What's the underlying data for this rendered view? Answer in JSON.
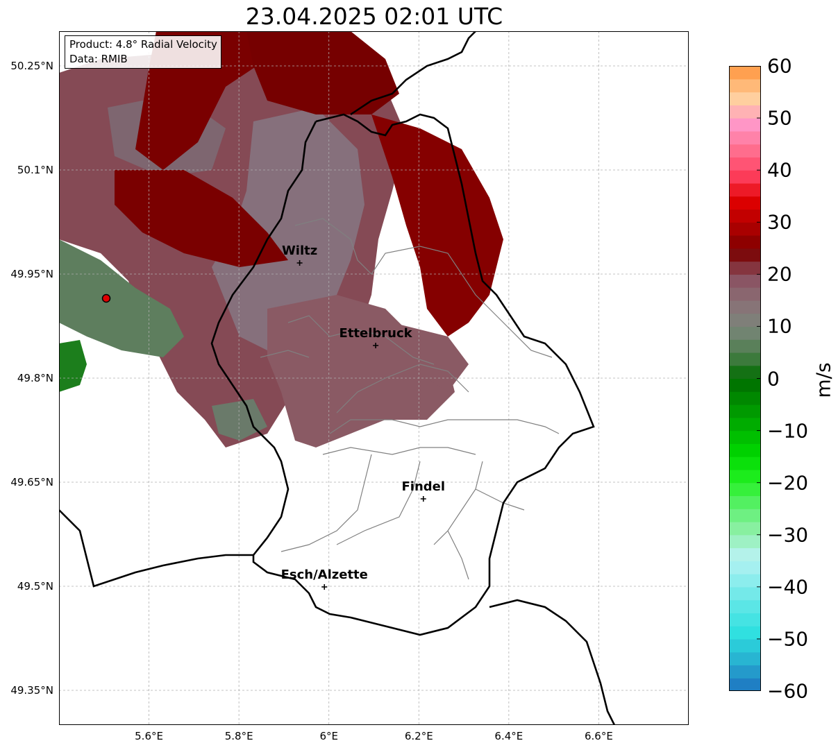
{
  "title": "23.04.2025 02:01 UTC",
  "info": {
    "product_line": "Product: 4.8° Radial Velocity",
    "data_line": "Data: RMIB"
  },
  "map": {
    "lon_range": [
      5.4,
      6.8
    ],
    "lat_range": [
      49.3,
      50.3
    ],
    "x_ticks": [
      {
        "value": 5.6,
        "label": "5.6°E"
      },
      {
        "value": 5.8,
        "label": "5.8°E"
      },
      {
        "value": 6.0,
        "label": "6°E"
      },
      {
        "value": 6.2,
        "label": "6.2°E"
      },
      {
        "value": 6.4,
        "label": "6.4°E"
      },
      {
        "value": 6.6,
        "label": "6.6°E"
      }
    ],
    "y_ticks": [
      {
        "value": 50.25,
        "label": "50.25°N"
      },
      {
        "value": 50.1,
        "label": "50.1°N"
      },
      {
        "value": 49.95,
        "label": "49.95°N"
      },
      {
        "value": 49.8,
        "label": "49.8°N"
      },
      {
        "value": 49.65,
        "label": "49.65°N"
      },
      {
        "value": 49.5,
        "label": "49.5°N"
      },
      {
        "value": 49.35,
        "label": "49.35°N"
      }
    ],
    "grid": true,
    "radar_site": {
      "lon": 5.505,
      "lat": 49.915,
      "color": "#e00000"
    },
    "cities": [
      {
        "name": "Wiltz",
        "lon": 5.935,
        "lat": 49.966
      },
      {
        "name": "Ettelbruck",
        "lon": 6.104,
        "lat": 49.847
      },
      {
        "name": "Findel",
        "lon": 6.21,
        "lat": 49.626
      },
      {
        "name": "Esch/Alzette",
        "lon": 5.99,
        "lat": 49.499
      }
    ]
  },
  "colorbar": {
    "unit": "m/s",
    "range": [
      -60,
      60
    ],
    "ticks": [
      {
        "value": 60,
        "label": "60"
      },
      {
        "value": 50,
        "label": "50"
      },
      {
        "value": 40,
        "label": "40"
      },
      {
        "value": 30,
        "label": "30"
      },
      {
        "value": 20,
        "label": "20"
      },
      {
        "value": 10,
        "label": "10"
      },
      {
        "value": 0,
        "label": "0"
      },
      {
        "value": -10,
        "label": "−10"
      },
      {
        "value": -20,
        "label": "−20"
      },
      {
        "value": -30,
        "label": "−30"
      },
      {
        "value": -40,
        "label": "−40"
      },
      {
        "value": -50,
        "label": "−50"
      },
      {
        "value": -60,
        "label": "−60"
      }
    ],
    "colors": [
      "#1f7fc4",
      "#28b4d2",
      "#2ee0e0",
      "#58e6e6",
      "#88ecec",
      "#b8f2f2",
      "#8ef0a8",
      "#5cf06c",
      "#22f022",
      "#00d800",
      "#00b400",
      "#009000",
      "#006c00",
      "#4e7e4e",
      "#7a867a",
      "#8a7076",
      "#8a5060",
      "#7a0000",
      "#b00000",
      "#e00000",
      "#ff4060",
      "#ff7090",
      "#ff98c8",
      "#ffd09e",
      "#ffa050"
    ]
  },
  "legend_colors": {
    "approach_strong": "#1f7fc4",
    "approach": "#00c000",
    "near_zero_green": "#5e7e5e",
    "near_zero_grey": "#86707a",
    "recede_light": "#8a4a54",
    "recede": "#7a0000",
    "recede_strong": "#e00000",
    "border": "#000000",
    "canton": "#808080"
  }
}
